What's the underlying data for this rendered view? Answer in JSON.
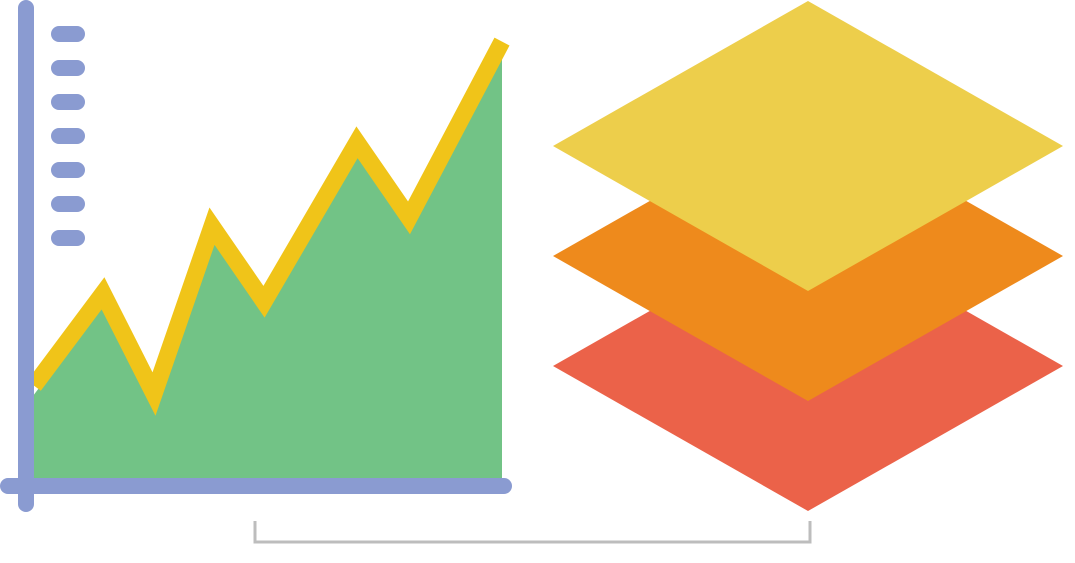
{
  "colors": {
    "axis": "#8A9BD1",
    "area_fill": "#72C386",
    "line": "#F0C419",
    "layer_top": "#EDCE4B",
    "layer_middle": "#EE8A1C",
    "layer_bottom": "#EB6249",
    "bracket": "#BDBDBD",
    "background": "#FFFFFF"
  },
  "icons": {
    "chart": "area-chart-icon",
    "layers": "stacked-layers-icon",
    "connector": "bracket-connector"
  },
  "chart_data": {
    "type": "area",
    "series": [
      {
        "values": [
          1.1,
          2.2,
          1.0,
          3.0,
          2.1,
          4.0,
          3.1,
          5.2
        ]
      }
    ],
    "ytick_count": 7,
    "ylim": [
      0,
      5.6
    ],
    "grid": false,
    "legend": "none"
  },
  "layers": [
    {
      "id": "bottom"
    },
    {
      "id": "middle"
    },
    {
      "id": "top"
    }
  ]
}
